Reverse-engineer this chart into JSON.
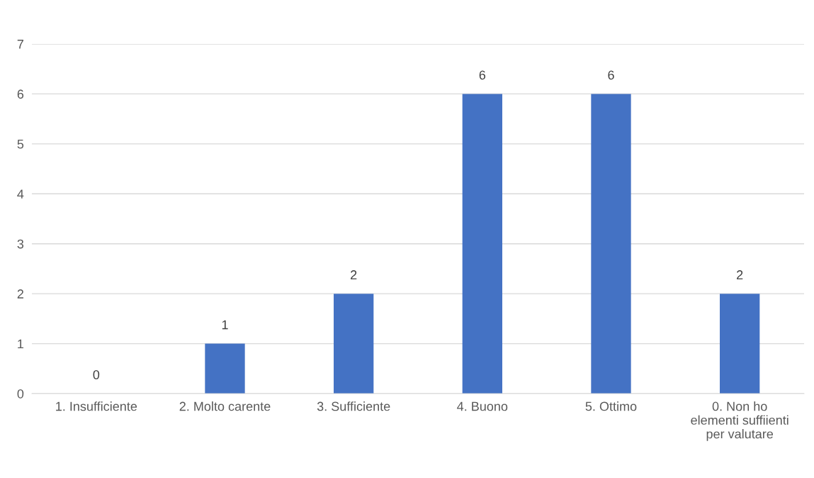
{
  "chart_data": {
    "type": "bar",
    "categories": [
      "1. Insufficiente",
      "2. Molto carente",
      "3. Sufficiente",
      "4. Buono",
      "5. Ottimo",
      "0. Non ho\nelementi suffiienti\nper valutare"
    ],
    "values": [
      0,
      1,
      2,
      6,
      6,
      2
    ],
    "color": "#4472c4",
    "ylim": [
      0,
      7
    ],
    "yticks": [
      0,
      1,
      2,
      3,
      4,
      5,
      6,
      7
    ],
    "grid": "y",
    "data_labels": true
  }
}
